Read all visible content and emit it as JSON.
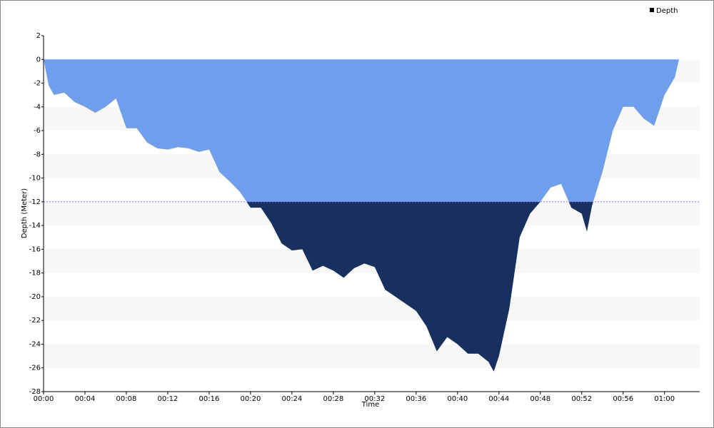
{
  "chart_data": {
    "type": "area",
    "x_label": "Time",
    "y_label": "Depth (Meter)",
    "x": [
      0,
      0.5,
      1,
      2,
      3,
      4,
      5,
      6,
      7,
      8,
      9,
      10,
      11,
      12,
      13,
      14,
      15,
      16,
      17,
      18,
      19,
      20,
      21,
      22,
      23,
      24,
      25,
      26,
      27,
      28,
      29,
      30,
      31,
      32,
      33,
      34,
      35,
      36,
      37,
      38,
      39,
      40,
      41,
      42,
      43,
      43.5,
      44,
      45,
      46,
      47,
      48,
      49,
      50,
      51,
      52,
      52.5,
      53,
      54,
      55,
      56,
      57,
      58,
      59,
      60,
      61,
      61.4
    ],
    "series": [
      {
        "name": "Depth",
        "color": "#6f9fec",
        "deep_color": "#17305f",
        "values": [
          0,
          -2.2,
          -3,
          -2.8,
          -3.6,
          -4,
          -4.5,
          -4,
          -3.3,
          -5.8,
          -5.8,
          -7,
          -7.5,
          -7.6,
          -7.4,
          -7.5,
          -7.8,
          -7.6,
          -9.5,
          -10.3,
          -11.2,
          -12.5,
          -12.5,
          -13.8,
          -15.5,
          -16.1,
          -16,
          -17.8,
          -17.4,
          -17.8,
          -18.4,
          -17.6,
          -17.2,
          -17.5,
          -19.4,
          -20,
          -20.6,
          -21.2,
          -22.5,
          -24.6,
          -23.4,
          -24,
          -24.8,
          -24.8,
          -25.5,
          -26.3,
          -25,
          -21,
          -15,
          -13,
          -12,
          -10.8,
          -10.5,
          -12.5,
          -13,
          -14.5,
          -12.3,
          -9.5,
          -6,
          -4,
          -4,
          -5,
          -5.6,
          -3,
          -1.5,
          0
        ]
      }
    ],
    "threshold": -12,
    "threshold_color": "#7b7bff",
    "xlim": [
      0,
      63.4
    ],
    "xticks": [
      {
        "value": 0,
        "label": "00:00"
      },
      {
        "value": 4,
        "label": "00:04"
      },
      {
        "value": 8,
        "label": "00:08"
      },
      {
        "value": 12,
        "label": "00:12"
      },
      {
        "value": 16,
        "label": "00:16"
      },
      {
        "value": 20,
        "label": "00:20"
      },
      {
        "value": 24,
        "label": "00:24"
      },
      {
        "value": 28,
        "label": "00:28"
      },
      {
        "value": 32,
        "label": "00:32"
      },
      {
        "value": 36,
        "label": "00:36"
      },
      {
        "value": 40,
        "label": "00:40"
      },
      {
        "value": 44,
        "label": "00:44"
      },
      {
        "value": 48,
        "label": "00:48"
      },
      {
        "value": 52,
        "label": "00:52"
      },
      {
        "value": 56,
        "label": "00:56"
      },
      {
        "value": 60,
        "label": "01:00"
      }
    ],
    "ylim": [
      -28,
      2
    ],
    "yticks": [
      2,
      0,
      -2,
      -4,
      -6,
      -8,
      -10,
      -12,
      -14,
      -16,
      -18,
      -20,
      -22,
      -24,
      -26,
      -28
    ],
    "grid": "bands",
    "legend": "top-right"
  }
}
